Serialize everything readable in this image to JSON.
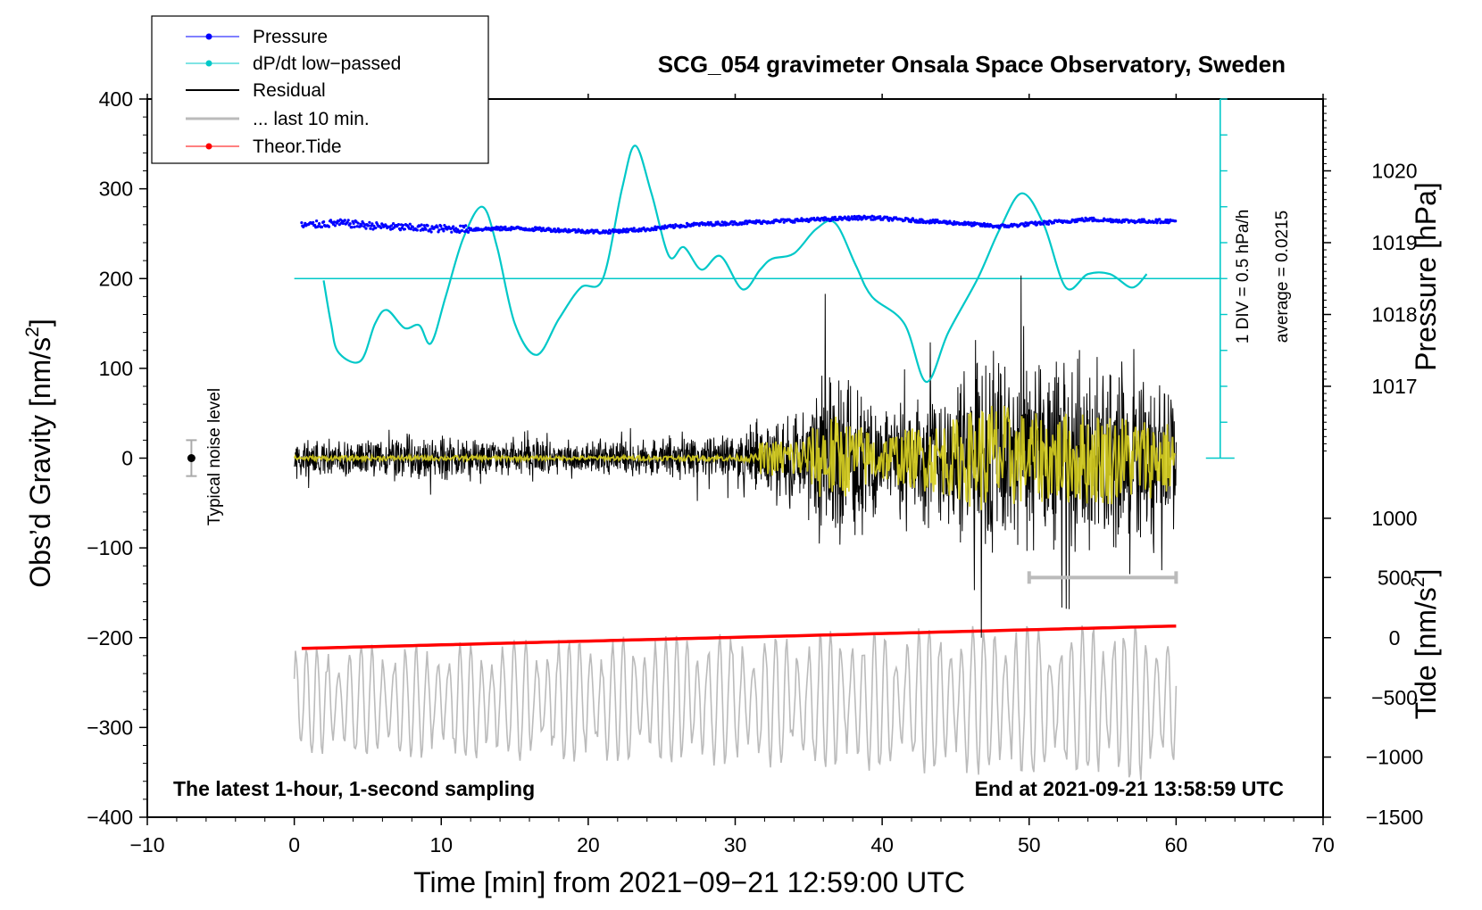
{
  "chart_data": {
    "type": "line",
    "title": "SCG_054 gravimeter Onsala Space Observatory, Sweden",
    "annotation_left": "The latest 1-hour, 1-second sampling",
    "annotation_right": "End at 2021-09-21 13:58:59 UTC",
    "xlabel": "Time [min] from 2021−09−21 12:59:00 UTC",
    "ylabel_left": "Obs’d Gravity [nm/s",
    "ylabel_right_pressure": "Pressure [hPa]",
    "ylabel_right_tide": "Tide [nm/s",
    "ylabel_sup": "2",
    "ylabel_close": "]",
    "xlim": [
      -10,
      70
    ],
    "ylim": [
      -400,
      400
    ],
    "x_ticks": [
      -10,
      0,
      10,
      20,
      30,
      40,
      50,
      60,
      70
    ],
    "x_tick_labels": [
      "−10",
      "0",
      "10",
      "20",
      "30",
      "40",
      "50",
      "60",
      "70"
    ],
    "y_ticks": [
      400,
      300,
      200,
      100,
      0,
      -100,
      -200,
      -300,
      -400
    ],
    "y_tick_labels": [
      "400",
      "300",
      "200",
      "100",
      "0",
      "−100",
      "−200",
      "−300",
      "−400"
    ],
    "pressure_axis": {
      "ticks": [
        1020,
        1019,
        1018,
        1017
      ],
      "tick_labels": [
        "1020",
        "1019",
        "1018",
        "1017"
      ],
      "gravity_equiv": [
        320,
        240,
        160,
        80
      ]
    },
    "tide_axis": {
      "ticks": [
        1000,
        500,
        0,
        -500,
        -1000,
        -1500
      ],
      "tick_labels": [
        "1000",
        "500",
        "0",
        "−500",
        "−1000",
        "−1500"
      ],
      "gravity_equiv": [
        -67,
        -133,
        -200,
        -267,
        -333,
        -400
      ]
    },
    "dpdt_scale": {
      "label": "1 DIV = 0.5 hPa/h",
      "average": "average = 0.0215",
      "x": 63,
      "y_bottom": 0,
      "y_top": 400,
      "divisions": 10,
      "reference_level": 200
    },
    "noise_level": {
      "label": "Typical noise level",
      "x": -7,
      "center": 0,
      "half_range": 20
    },
    "last_10_min_bar": {
      "x": [
        50,
        60
      ],
      "y": -133
    },
    "series": [
      {
        "name": "Pressure",
        "color": "#0000ff",
        "x": [
          0.5,
          3,
          6,
          9,
          12,
          15,
          18,
          21,
          24,
          27,
          30,
          33,
          36,
          39,
          42,
          45,
          48,
          51,
          54,
          57,
          60
        ],
        "y": [
          259,
          262,
          258,
          256,
          255,
          256,
          254,
          252,
          255,
          260,
          262,
          264,
          266,
          268,
          265,
          262,
          258,
          262,
          266,
          264,
          264
        ]
      },
      {
        "name": "dP/dt low−passed",
        "color": "#00c8c8",
        "x": [
          2,
          2.5,
          3,
          4.5,
          5.5,
          6.3,
          7.5,
          8.5,
          9.3,
          10.3,
          11.5,
          12.8,
          13.8,
          15,
          16.5,
          18,
          19.5,
          21,
          22.3,
          23.2,
          24.3,
          25.5,
          26.5,
          27.7,
          29,
          30.5,
          31.7,
          32.5,
          34,
          35.5,
          36.8,
          38.2,
          39.3,
          41.5,
          43,
          44.5,
          46.5,
          48,
          49.5,
          51,
          52.5,
          54,
          55.5,
          57,
          58
        ],
        "y": [
          198,
          150,
          118,
          108,
          150,
          165,
          145,
          148,
          128,
          180,
          245,
          280,
          235,
          150,
          115,
          155,
          190,
          200,
          300,
          348,
          295,
          225,
          235,
          210,
          225,
          188,
          210,
          222,
          228,
          255,
          262,
          215,
          180,
          150,
          85,
          140,
          200,
          255,
          295,
          260,
          190,
          205,
          205,
          190,
          205
        ]
      },
      {
        "name": "Residual",
        "color": "#000000",
        "x": [
          0,
          10,
          20,
          30,
          35,
          36,
          40,
          45,
          47.3,
          50,
          55,
          60
        ],
        "y": [
          0,
          0,
          0,
          0,
          0,
          0,
          0,
          0,
          0,
          0,
          0,
          0
        ],
        "envelope": [
          22,
          25,
          20,
          30,
          60,
          120,
          60,
          100,
          150,
          110,
          120,
          90
        ]
      },
      {
        "name": "... last 10 min.",
        "color": "#bbbbbb",
        "x": [
          0,
          60
        ],
        "y": [
          -270,
          -270
        ],
        "envelope": [
          60,
          90
        ]
      },
      {
        "name": "Theor.Tide",
        "color": "#ff0000",
        "x": [
          0.5,
          60
        ],
        "y": [
          -212,
          -187
        ]
      }
    ],
    "legend": {
      "placement": "top-left",
      "entries": [
        "Pressure",
        "dP/dt low−passed",
        "Residual",
        "... last 10 min.",
        "Theor.Tide"
      ]
    }
  }
}
